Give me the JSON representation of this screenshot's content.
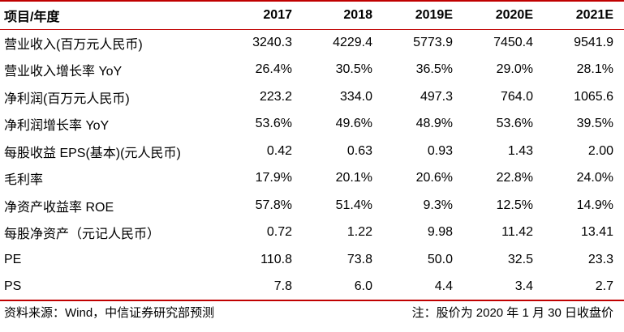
{
  "table": {
    "header": [
      "项目/年度",
      "2017",
      "2018",
      "2019E",
      "2020E",
      "2021E"
    ],
    "rows": [
      [
        "营业收入(百万元人民币)",
        "3240.3",
        "4229.4",
        "5773.9",
        "7450.4",
        "9541.9"
      ],
      [
        "营业收入增长率 YoY",
        "26.4%",
        "30.5%",
        "36.5%",
        "29.0%",
        "28.1%"
      ],
      [
        "净利润(百万元人民币)",
        "223.2",
        "334.0",
        "497.3",
        "764.0",
        "1065.6"
      ],
      [
        "净利润增长率 YoY",
        "53.6%",
        "49.6%",
        "48.9%",
        "53.6%",
        "39.5%"
      ],
      [
        "每股收益 EPS(基本)(元人民币)",
        "0.42",
        "0.63",
        "0.93",
        "1.43",
        "2.00"
      ],
      [
        "毛利率",
        "17.9%",
        "20.1%",
        "20.6%",
        "22.8%",
        "24.0%"
      ],
      [
        "净资产收益率 ROE",
        "57.8%",
        "51.4%",
        "9.3%",
        "12.5%",
        "14.9%"
      ],
      [
        "每股净资产（元记人民币）",
        "0.72",
        "1.22",
        "9.98",
        "11.42",
        "13.41"
      ],
      [
        "PE",
        "110.8",
        "73.8",
        "50.0",
        "32.5",
        "23.3"
      ],
      [
        "PS",
        "7.8",
        "6.0",
        "4.4",
        "3.4",
        "2.7"
      ]
    ]
  },
  "footer": {
    "source": "资料来源：Wind，中信证券研究部预测",
    "note": "注：股价为 2020 年 1 月 30 日收盘价"
  },
  "colors": {
    "rule": "#c00000",
    "text": "#000000",
    "background": "#ffffff"
  }
}
